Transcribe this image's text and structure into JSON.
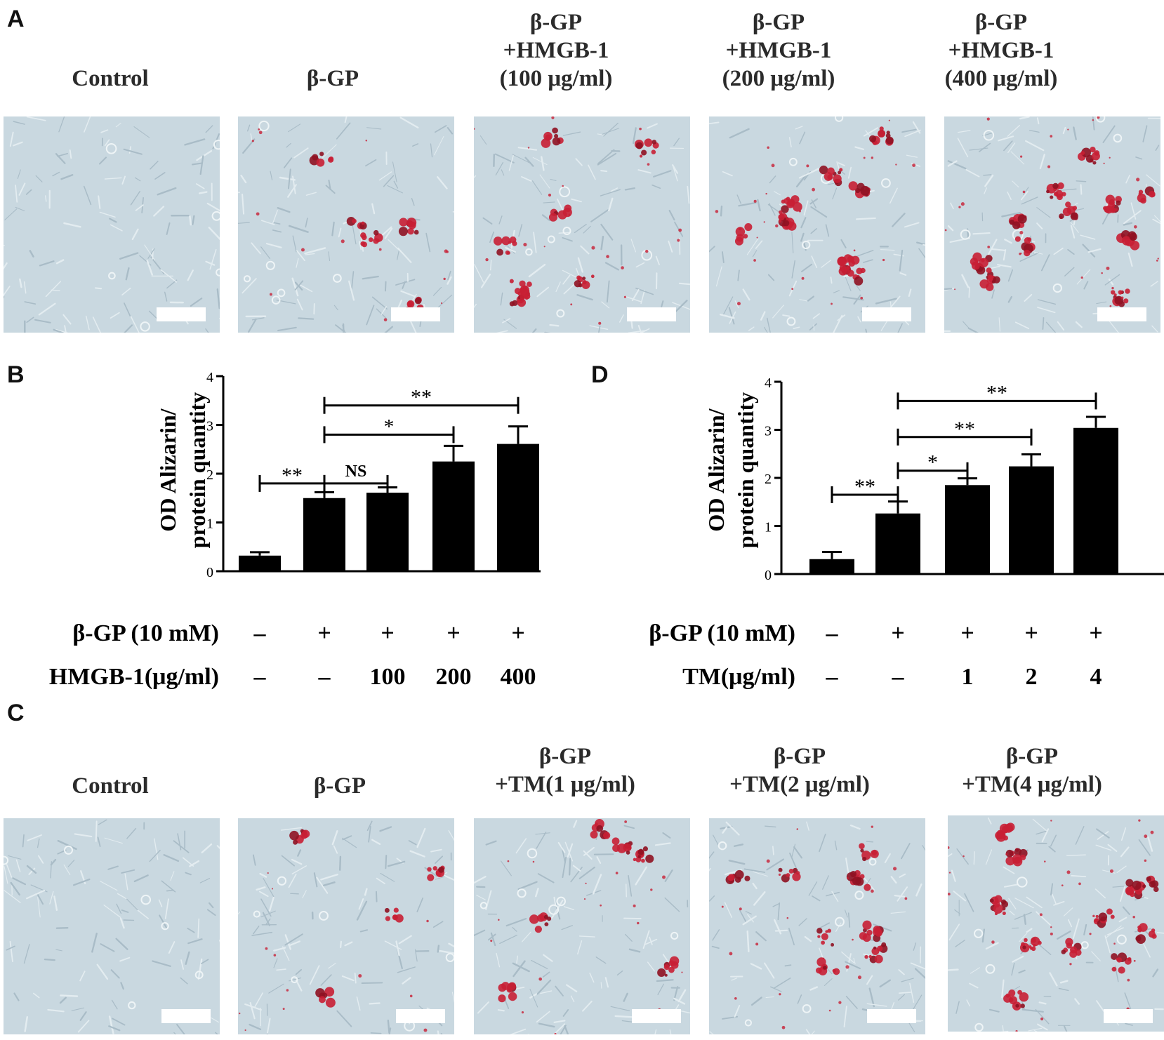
{
  "panel_letters": {
    "a": "A",
    "b": "B",
    "c": "C",
    "d": "D"
  },
  "colors": {
    "bar": "#000000",
    "background": "#c9d8e0",
    "stain": "#c81f34",
    "scale_bar": "#ffffff"
  },
  "panel_a": {
    "titles": [
      "Control",
      "β-GP",
      "β-GP\n+HMGB-1\n(100 μg/ml)",
      "β-GP\n+HMGB-1\n(200 μg/ml)",
      "β-GP\n+HMGB-1\n(400 μg/ml)"
    ],
    "stain_level": [
      0,
      0.35,
      0.5,
      0.6,
      0.75
    ]
  },
  "panel_c": {
    "titles": [
      "Control",
      "β-GP",
      "β-GP\n+TM(1 μg/ml)",
      "β-GP\n+TM(2 μg/ml)",
      "β-GP\n+TM(4 μg/ml)"
    ],
    "stain_level": [
      0,
      0.3,
      0.45,
      0.55,
      0.75
    ]
  },
  "chart_data": [
    {
      "panel": "B",
      "type": "bar",
      "ylabel": "OD Alizarin/\nprotein quantity",
      "ylim": [
        0,
        4
      ],
      "yticks": [
        "0",
        "1",
        "2",
        "3",
        "4"
      ],
      "values": [
        0.32,
        1.5,
        1.61,
        2.25,
        2.61
      ],
      "errors": [
        0.07,
        0.12,
        0.11,
        0.32,
        0.36
      ],
      "condition_rows": [
        {
          "label": "β-GP (10 mM)",
          "values": [
            "–",
            "+",
            "+",
            "+",
            "+"
          ]
        },
        {
          "label": "HMGB-1(μg/ml)",
          "values": [
            "–",
            "–",
            "100",
            "200",
            "400"
          ]
        }
      ],
      "brackets": [
        {
          "from": 0,
          "to": 1,
          "y": 1.8,
          "label": "**"
        },
        {
          "from": 1,
          "to": 2,
          "y": 1.8,
          "label": "NS"
        },
        {
          "from": 1,
          "to": 3,
          "y": 2.8,
          "label": "*"
        },
        {
          "from": 1,
          "to": 4,
          "y": 3.4,
          "label": "**"
        }
      ]
    },
    {
      "panel": "D",
      "type": "bar",
      "ylabel": "OD Alizarin/\nprotein quantity",
      "ylim": [
        0,
        4
      ],
      "yticks": [
        "0",
        "1",
        "2",
        "3",
        "4"
      ],
      "values": [
        0.31,
        1.26,
        1.85,
        2.24,
        3.04
      ],
      "errors": [
        0.15,
        0.25,
        0.14,
        0.25,
        0.23
      ],
      "condition_rows": [
        {
          "label": "β-GP (10 mM)",
          "values": [
            "–",
            "+",
            "+",
            "+",
            "+"
          ]
        },
        {
          "label": "TM(μg/ml)",
          "values": [
            "–",
            "–",
            "1",
            "2",
            "4"
          ]
        }
      ],
      "brackets": [
        {
          "from": 0,
          "to": 1,
          "y": 1.65,
          "label": "**"
        },
        {
          "from": 1,
          "to": 2,
          "y": 2.15,
          "label": "*"
        },
        {
          "from": 1,
          "to": 3,
          "y": 2.85,
          "label": "**"
        },
        {
          "from": 1,
          "to": 4,
          "y": 3.6,
          "label": "**"
        }
      ]
    }
  ]
}
